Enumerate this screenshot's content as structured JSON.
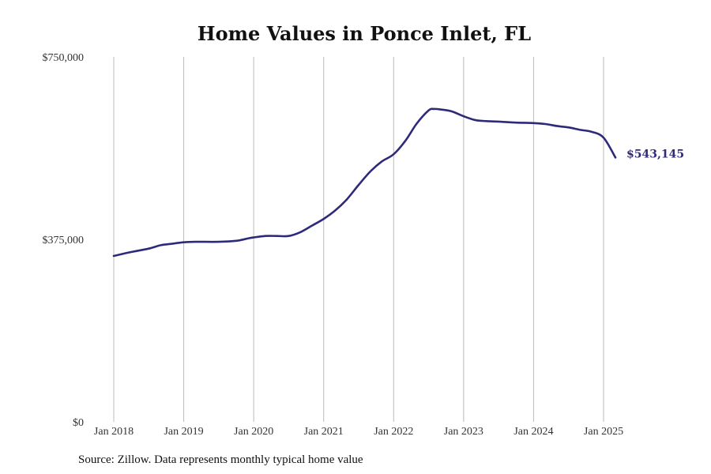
{
  "chart_data": {
    "type": "line",
    "title": "Home Values in Ponce Inlet, FL",
    "xlabel": "",
    "ylabel": "",
    "ylim": [
      0,
      750000
    ],
    "y_ticks": [
      {
        "value": 0,
        "label": "$0"
      },
      {
        "value": 375000,
        "label": "$375,000"
      },
      {
        "value": 750000,
        "label": "$750,000"
      }
    ],
    "x_ticks": [
      {
        "value": 2018.0,
        "label": "Jan 2018"
      },
      {
        "value": 2019.0,
        "label": "Jan 2019"
      },
      {
        "value": 2020.0,
        "label": "Jan 2020"
      },
      {
        "value": 2021.0,
        "label": "Jan 2021"
      },
      {
        "value": 2022.0,
        "label": "Jan 2022"
      },
      {
        "value": 2023.0,
        "label": "Jan 2023"
      },
      {
        "value": 2024.0,
        "label": "Jan 2024"
      },
      {
        "value": 2025.0,
        "label": "Jan 2025"
      }
    ],
    "grid": {
      "vertical": true,
      "horizontal": false
    },
    "line_color": "#2e2a7a",
    "grid_color": "#bbbbbb",
    "series": [
      {
        "name": "Typical home value",
        "x": [
          2018.0,
          2018.25,
          2018.5,
          2018.67,
          2018.83,
          2019.0,
          2019.17,
          2019.5,
          2019.75,
          2019.92,
          2020.0,
          2020.17,
          2020.33,
          2020.5,
          2020.67,
          2020.83,
          2021.0,
          2021.17,
          2021.33,
          2021.5,
          2021.67,
          2021.83,
          2022.0,
          2022.17,
          2022.33,
          2022.5,
          2022.58,
          2022.67,
          2022.83,
          2023.0,
          2023.17,
          2023.33,
          2023.5,
          2023.75,
          2024.0,
          2024.17,
          2024.33,
          2024.5,
          2024.67,
          2024.83,
          2025.0,
          2025.17
        ],
        "y": [
          341000,
          349000,
          356000,
          363000,
          366000,
          369000,
          370000,
          370000,
          372000,
          377000,
          379000,
          382000,
          382000,
          382000,
          390000,
          403000,
          417000,
          435000,
          457000,
          487000,
          515000,
          535000,
          550000,
          578000,
          613000,
          640000,
          643000,
          642000,
          638000,
          628000,
          620000,
          618000,
          617000,
          615000,
          614000,
          612000,
          608000,
          605000,
          600000,
          596000,
          584000,
          543145
        ]
      }
    ],
    "end_label": "$543,145"
  },
  "source_text": "Source: Zillow. Data represents monthly typical home value"
}
